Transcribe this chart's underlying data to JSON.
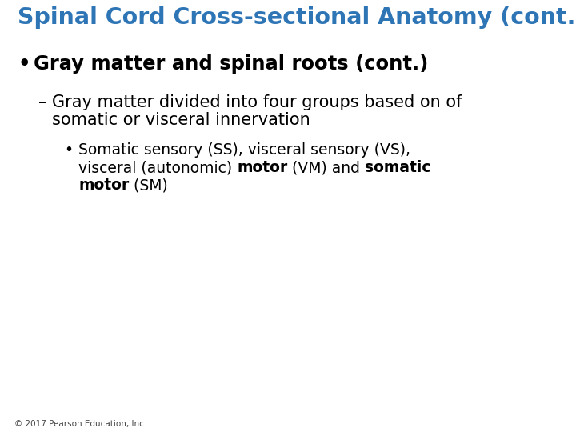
{
  "title": "Spinal Cord Cross-sectional Anatomy (cont.)",
  "title_color": "#2E75B6",
  "title_fontsize": 20.5,
  "background_color": "#FFFFFF",
  "footer": "© 2017 Pearson Education, Inc.",
  "footer_fontsize": 7.5,
  "footer_color": "#444444",
  "bullet1": "Gray matter and spinal roots (cont.)",
  "bullet1_fontsize": 17.5,
  "bullet1_color": "#000000",
  "dash1_line1": "– Gray matter divided into four groups based on of",
  "dash1_line2": "  somatic or visceral innervation",
  "dash_fontsize": 15,
  "dash_color": "#000000",
  "sub_fontsize": 13.5,
  "sub_color": "#000000",
  "sub_line1": "Somatic sensory (SS), visceral sensory (VS),",
  "sub_line2_parts": [
    {
      "text": "visceral (autonomic) ",
      "bold": false
    },
    {
      "text": "motor",
      "bold": true
    },
    {
      "text": " (VM) and ",
      "bold": false
    },
    {
      "text": "somatic",
      "bold": true
    }
  ],
  "sub_line3_parts": [
    {
      "text": "motor",
      "bold": true
    },
    {
      "text": " (SM)",
      "bold": false
    }
  ]
}
